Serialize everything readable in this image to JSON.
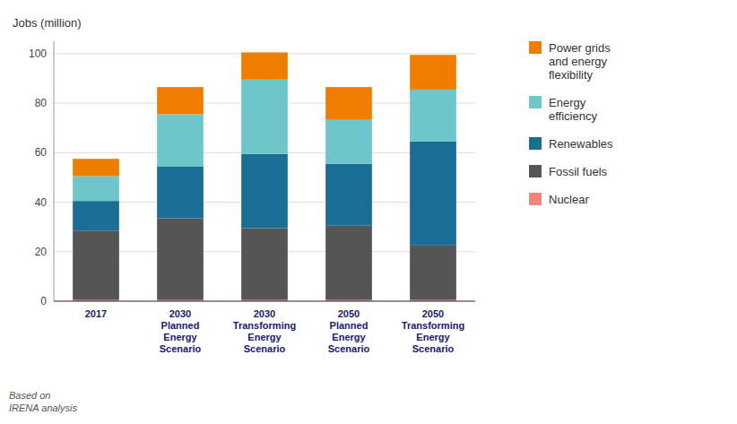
{
  "chart_data": {
    "type": "bar",
    "stacked": true,
    "categories": [
      "2017",
      "2030\nPlanned\nEnergy\nScenario",
      "2030\nTransforming\nEnergy\nScenario",
      "2050\nPlanned\nEnergy\nScenario",
      "2050\nTransforming\nEnergy\nScenario"
    ],
    "series": [
      {
        "name": "Nuclear",
        "color": "#f0857d",
        "values": [
          0.5,
          0.5,
          0.5,
          0.5,
          0.5
        ]
      },
      {
        "name": "Fossil fuels",
        "color": "#555555",
        "values": [
          28,
          33,
          29,
          30,
          22
        ]
      },
      {
        "name": "Renewables",
        "color": "#1a6e96",
        "values": [
          12,
          21,
          30,
          25,
          42
        ]
      },
      {
        "name": "Energy\nefficiency",
        "color": "#6ec6cb",
        "values": [
          10,
          21,
          30,
          18,
          21
        ]
      },
      {
        "name": "Power grids\nand energy\nflexibility",
        "color": "#f07d00",
        "values": [
          7,
          11,
          11,
          13,
          14
        ]
      }
    ],
    "y_label": "Jobs (million)",
    "annotations": [
      "Based on\nIRENA analysis"
    ],
    "ylim": [
      0,
      105
    ],
    "yticks": [
      0,
      20,
      40,
      60,
      80,
      100
    ],
    "grid": true,
    "legend": "right"
  }
}
